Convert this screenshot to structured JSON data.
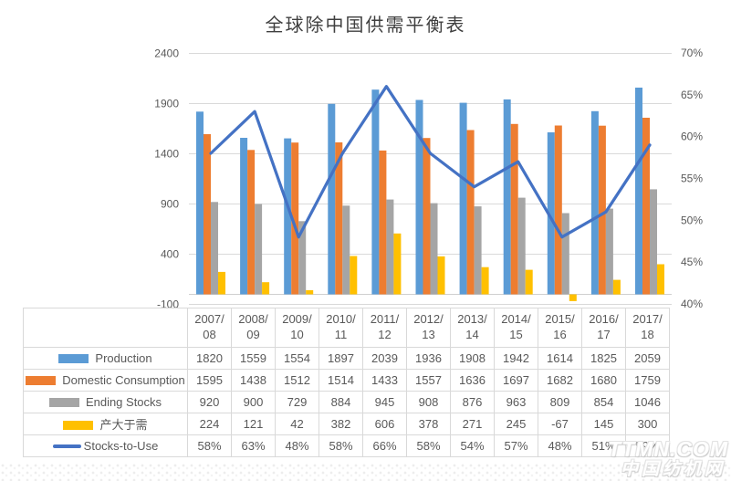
{
  "watermark": {
    "line1": "TTMN.COM",
    "line2": "中国纺机网"
  },
  "colors": {
    "production": "#5B9BD5",
    "domestic_consumption": "#ED7D31",
    "ending_stocks": "#A5A5A5",
    "surplus": "#FFC000",
    "stocks_to_use": "#4472C4",
    "gridline": "#D9D9D9",
    "axis_line": "#CFCFCF",
    "axis_text": "#595959",
    "table_border": "#D9D9D9",
    "table_text": "#595959",
    "title_text": "#3F3F3F"
  },
  "chart_data": {
    "type": "bar+line combo with data table",
    "title": "全球除中国供需平衡表",
    "categories": [
      "2007/08",
      "2008/09",
      "2009/10",
      "2010/11",
      "2011/12",
      "2012/13",
      "2013/14",
      "2014/15",
      "2015/16",
      "2016/17",
      "2017/18"
    ],
    "series": [
      {
        "key": "production",
        "name": "Production",
        "kind": "bar",
        "color": "#5B9BD5",
        "axis": "left",
        "values": [
          1820,
          1559,
          1554,
          1897,
          2039,
          1936,
          1908,
          1942,
          1614,
          1825,
          2059
        ]
      },
      {
        "key": "domestic-consumption",
        "name": "Domestic Consumption",
        "kind": "bar",
        "color": "#ED7D31",
        "axis": "left",
        "values": [
          1595,
          1438,
          1512,
          1514,
          1433,
          1557,
          1636,
          1697,
          1682,
          1680,
          1759
        ]
      },
      {
        "key": "ending-stocks",
        "name": "Ending Stocks",
        "kind": "bar",
        "color": "#A5A5A5",
        "axis": "left",
        "values": [
          920,
          900,
          729,
          884,
          945,
          908,
          876,
          963,
          809,
          854,
          1046
        ]
      },
      {
        "key": "surplus",
        "name": "产大于需",
        "kind": "bar",
        "color": "#FFC000",
        "axis": "left",
        "values": [
          224,
          121,
          42,
          382,
          606,
          378,
          271,
          245,
          -67,
          145,
          300
        ]
      },
      {
        "key": "stocks-to-use",
        "name": "Stocks-to-Use",
        "kind": "line",
        "color": "#4472C4",
        "axis": "right",
        "format": "percent",
        "values": [
          58,
          63,
          48,
          58,
          66,
          58,
          54,
          57,
          48,
          51,
          59
        ]
      }
    ],
    "left_axis": {
      "min": -100,
      "max": 2400,
      "ticks": [
        "2400",
        "1900",
        "1400",
        "900",
        "400",
        "-100"
      ]
    },
    "right_axis": {
      "min": 40,
      "max": 70,
      "ticks": [
        "70%",
        "65%",
        "60%",
        "55%",
        "50%",
        "45%",
        "40%"
      ]
    },
    "grid": true,
    "legend_position": "table-left"
  }
}
